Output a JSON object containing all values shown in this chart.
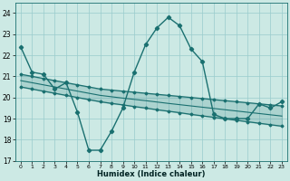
{
  "xlabel": "Humidex (Indice chaleur)",
  "xlim": [
    -0.5,
    23.5
  ],
  "ylim": [
    17,
    24.5
  ],
  "yticks": [
    17,
    18,
    19,
    20,
    21,
    22,
    23,
    24
  ],
  "xticks": [
    0,
    1,
    2,
    3,
    4,
    5,
    6,
    7,
    8,
    9,
    10,
    11,
    12,
    13,
    14,
    15,
    16,
    17,
    18,
    19,
    20,
    21,
    22,
    23
  ],
  "bg_color": "#cce9e4",
  "grid_color": "#99cccc",
  "line_color": "#1a7070",
  "main_values": [
    22.4,
    21.2,
    21.1,
    20.4,
    20.7,
    19.3,
    17.5,
    17.5,
    18.4,
    19.5,
    21.2,
    22.5,
    23.3,
    23.8,
    23.4,
    22.3,
    21.7,
    19.2,
    19.0,
    19.0,
    19.0,
    19.7,
    19.5,
    19.8
  ],
  "upper_line": [
    21.1,
    21.0,
    20.9,
    20.8,
    20.7,
    20.6,
    20.5,
    20.4,
    20.35,
    20.3,
    20.25,
    20.2,
    20.15,
    20.1,
    20.05,
    20.0,
    19.95,
    19.9,
    19.85,
    19.8,
    19.75,
    19.7,
    19.65,
    19.6
  ],
  "lower_line": [
    20.5,
    20.4,
    20.3,
    20.2,
    20.1,
    20.0,
    19.9,
    19.8,
    19.72,
    19.65,
    19.57,
    19.5,
    19.42,
    19.35,
    19.28,
    19.2,
    19.13,
    19.06,
    18.99,
    18.92,
    18.85,
    18.78,
    18.71,
    18.64
  ],
  "mid_line": [
    20.8,
    20.7,
    20.6,
    20.5,
    20.4,
    20.3,
    20.2,
    20.1,
    20.035,
    19.97,
    19.91,
    19.85,
    19.785,
    19.72,
    19.66,
    19.6,
    19.54,
    19.48,
    19.42,
    19.36,
    19.3,
    19.24,
    19.18,
    19.12
  ]
}
